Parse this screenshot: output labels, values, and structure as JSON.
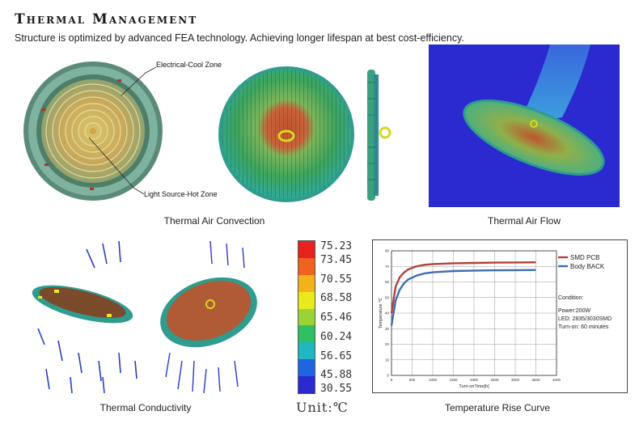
{
  "header": {
    "title": "Thermal Management",
    "subtitle": "Structure is optimized by advanced FEA  technology. Achieving longer lifespan at best cost-efficiency."
  },
  "annotations": {
    "electrical_cool_zone": "Electrical-Cool Zone",
    "light_source_hot_zone": "Light Source-Hot Zone"
  },
  "captions": {
    "thermal_air_convection": "Thermal Air Convection",
    "thermal_air_flow": "Thermal Air Flow",
    "thermal_conductivity": "Thermal Conductivity",
    "temperature_rise_curve": "Temperature Rise Curve"
  },
  "legend": {
    "values": [
      "75.23",
      "73.45",
      "70.55",
      "68.58",
      "65.46",
      "60.24",
      "56.65",
      "45.88",
      "30.55"
    ],
    "colors": [
      "#e8231f",
      "#f0621f",
      "#f4b21a",
      "#e8ea1c",
      "#9ad334",
      "#2fc063",
      "#1fb7c0",
      "#1f64e0",
      "#2a2ad0"
    ],
    "unit": "Unit:℃"
  },
  "chart_data": {
    "type": "line",
    "xlabel": "Turn-onTime[h]",
    "ylabel": "Temperature ℃",
    "x_ticks": [
      "0",
      "500",
      "1000",
      "1500",
      "2000",
      "2500",
      "3000",
      "3500",
      "4000"
    ],
    "y_ticks": [
      "0",
      "10",
      "20",
      "30",
      "40",
      "50",
      "60",
      "70",
      "80"
    ],
    "xlim": [
      0,
      4000
    ],
    "ylim": [
      0,
      80
    ],
    "series": [
      {
        "name": "SMD PCB",
        "color": "#b3403a",
        "x": [
          0,
          100,
          200,
          300,
          400,
          600,
          800,
          1000,
          1500,
          2000,
          2500,
          3000,
          3500
        ],
        "y": [
          40,
          57,
          63,
          66,
          68,
          70,
          71,
          71.5,
          72,
          72.2,
          72.4,
          72.5,
          72.6
        ]
      },
      {
        "name": "Body BACK",
        "color": "#3f6db2",
        "x": [
          0,
          100,
          200,
          300,
          400,
          600,
          800,
          1000,
          1500,
          2000,
          2500,
          3000,
          3500
        ],
        "y": [
          32,
          48,
          55,
          59,
          61.5,
          64,
          65.5,
          66.2,
          67,
          67.3,
          67.5,
          67.6,
          67.7
        ]
      }
    ],
    "legend_position": "top-right",
    "condition_title": "Condition:",
    "conditions": [
      "Power:200W",
      "LED: 2835/3030SMD",
      "Turn-on: 60 minutes"
    ]
  }
}
